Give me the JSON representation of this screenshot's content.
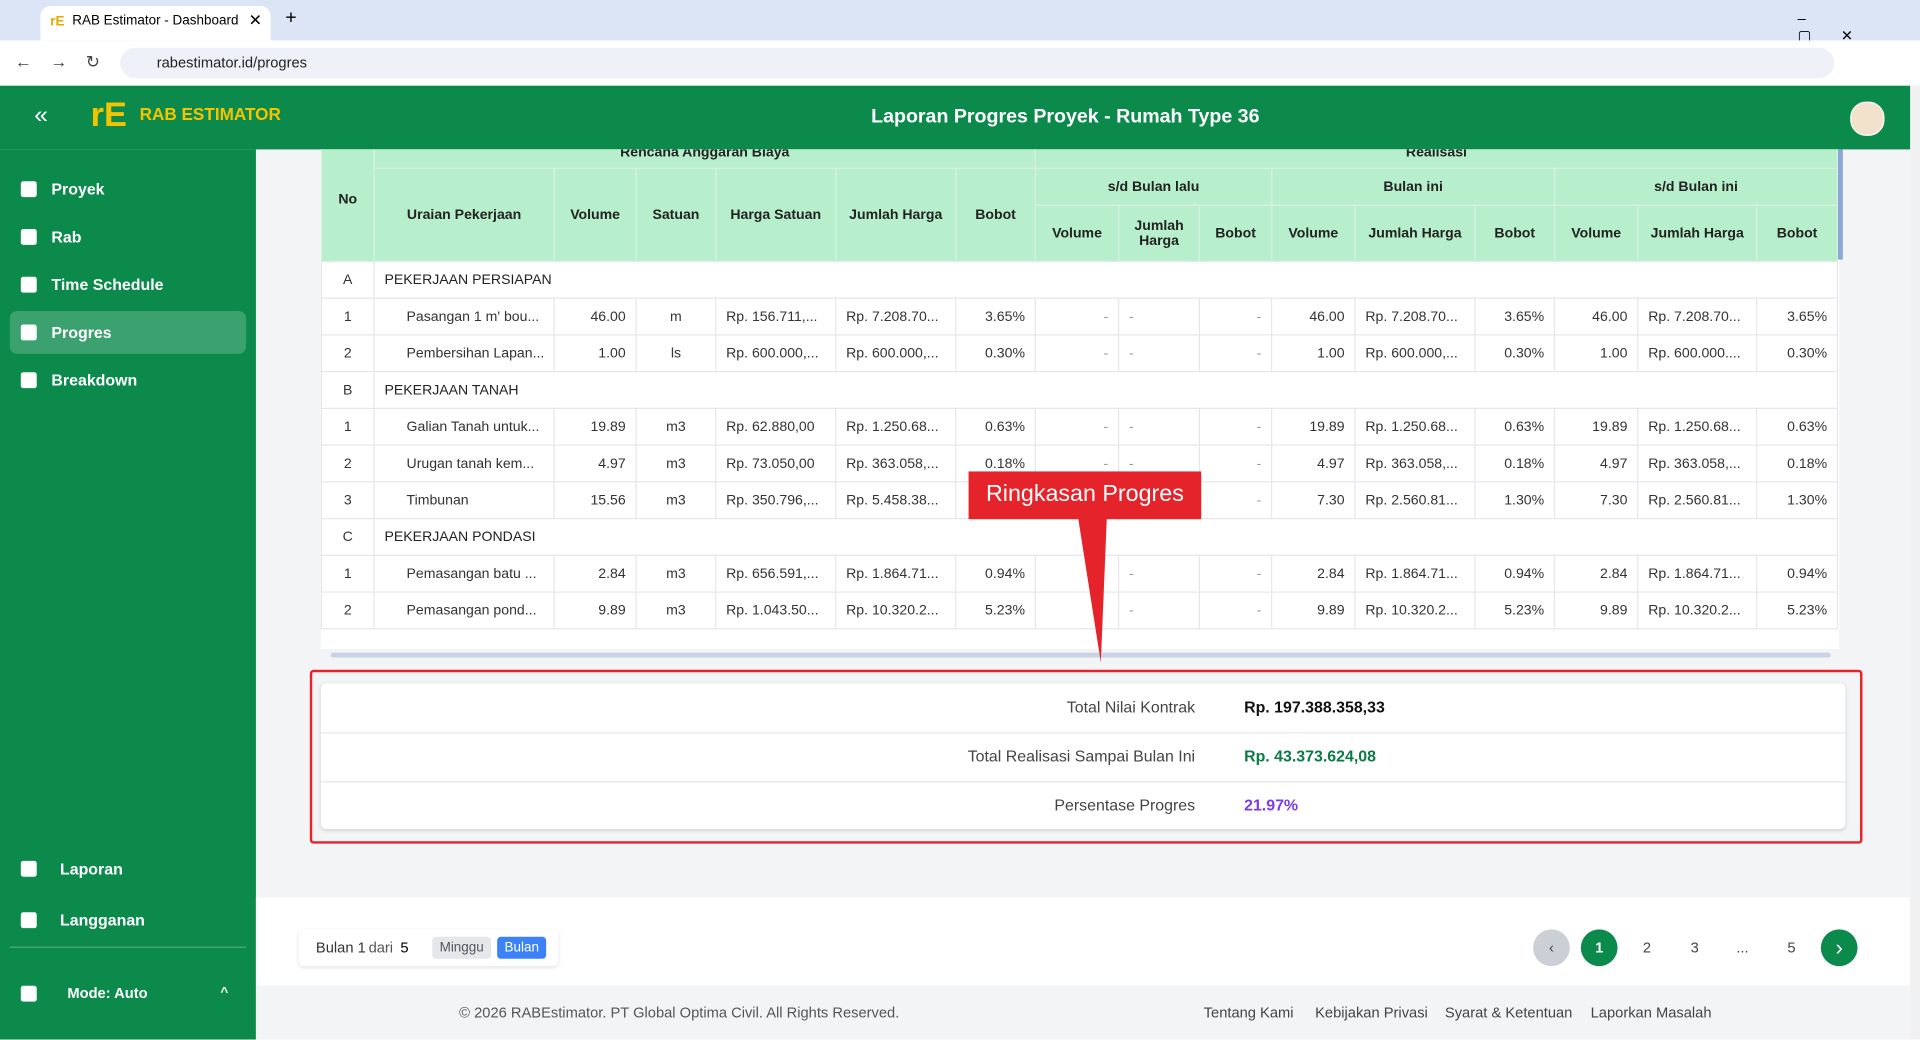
{
  "browser": {
    "tab_title": "RAB Estimator - Dashboard",
    "url": "rabestimator.id/progres"
  },
  "app": {
    "logo": "RAB ESTIMATOR",
    "page_title": "Laporan Progres Proyek - Rumah Type 36"
  },
  "sidebar": {
    "items": [
      "Proyek",
      "Rab",
      "Time Schedule",
      "Progres",
      "Breakdown"
    ],
    "bottom_items": [
      "Laporan",
      "Langganan"
    ],
    "mode": "Mode: Auto"
  },
  "table": {
    "groups": [
      "Rencana Anggaran Biaya",
      "Realisasi"
    ],
    "periods": [
      "s/d Bulan lalu",
      "Bulan ini",
      "s/d Bulan ini"
    ],
    "columns": [
      "No",
      "Uraian Pekerjaan",
      "Volume",
      "Satuan",
      "Harga Satuan",
      "Jumlah Harga",
      "Bobot"
    ],
    "sub_columns": [
      "Volume",
      "Jumlah Harga",
      "Bobot"
    ],
    "rows": [
      [
        "A",
        "PEKERJAAN PERSIAPAN"
      ],
      [
        "1",
        "Pasangan 1 m' bou...",
        "46.00",
        "m",
        "Rp. 156.711,...",
        "Rp. 7.208.70...",
        "3.65%",
        "-",
        "-",
        "-",
        "46.00",
        "Rp. 7.208.70...",
        "3.65%",
        "46.00",
        "Rp. 7.208.70...",
        "3.65%"
      ],
      [
        "2",
        "Pembersihan Lapan...",
        "1.00",
        "ls",
        "Rp. 600.000,...",
        "Rp. 600.000,...",
        "0.30%",
        "-",
        "-",
        "-",
        "1.00",
        "Rp. 600.000,...",
        "0.30%",
        "1.00",
        "Rp. 600.000....",
        "0.30%"
      ],
      [
        "B",
        "PEKERJAAN TANAH"
      ],
      [
        "1",
        "Galian Tanah untuk...",
        "19.89",
        "m3",
        "Rp. 62.880,00",
        "Rp. 1.250.68...",
        "0.63%",
        "-",
        "-",
        "-",
        "19.89",
        "Rp. 1.250.68...",
        "0.63%",
        "19.89",
        "Rp. 1.250.68...",
        "0.63%"
      ],
      [
        "2",
        "Urugan tanah kem...",
        "4.97",
        "m3",
        "Rp. 73.050,00",
        "Rp. 363.058,...",
        "0.18%",
        "-",
        "-",
        "-",
        "4.97",
        "Rp. 363.058,...",
        "0.18%",
        "4.97",
        "Rp. 363.058,...",
        "0.18%"
      ],
      [
        "3",
        "Timbunan",
        "15.56",
        "m3",
        "Rp. 350.796,...",
        "Rp. 5.458.38...",
        null,
        null,
        null,
        "-",
        "7.30",
        "Rp. 2.560.81...",
        "1.30%",
        "7.30",
        "Rp. 2.560.81...",
        "1.30%"
      ],
      [
        "C",
        "PEKERJAAN PONDASI"
      ],
      [
        "1",
        "Pemasangan batu ...",
        "2.84",
        "m3",
        "Rp. 656.591,...",
        "Rp. 1.864.71...",
        "0.94%",
        null,
        "-",
        "-",
        "2.84",
        "Rp. 1.864.71...",
        "0.94%",
        "2.84",
        "Rp. 1.864.71...",
        "0.94%"
      ],
      [
        "2",
        "Pemasangan pond...",
        "9.89",
        "m3",
        "Rp. 1.043.50...",
        "Rp. 10.320.2...",
        "5.23%",
        null,
        "-",
        "-",
        "9.89",
        "Rp. 10.320.2...",
        "5.23%",
        "9.89",
        "Rp. 10.320.2...",
        "5.23%"
      ]
    ]
  },
  "summary": {
    "rows": [
      {
        "label": "Total Nilai Kontrak",
        "value": "Rp. 197.388.358,33"
      },
      {
        "label": "Total Realisasi Sampai Bulan Ini",
        "value": "Rp. 43.373.624,08"
      },
      {
        "label": "Persentase Progres",
        "value": "21.97%"
      }
    ]
  },
  "annotation": "Ringkasan Progres",
  "pagination": {
    "current": "Bulan 1",
    "of": "dari",
    "total": "5",
    "toggle": [
      "Minggu",
      "Bulan"
    ],
    "pages": [
      "1",
      "2",
      "3",
      "...",
      "5"
    ]
  },
  "footer": {
    "copyright": "© 2026 RABEstimator. PT Global Optima Civil. All Rights Reserved.",
    "links": [
      "Tentang Kami",
      "Kebijakan Privasi",
      "Syarat & Ketentuan",
      "Laporkan Masalah"
    ]
  }
}
